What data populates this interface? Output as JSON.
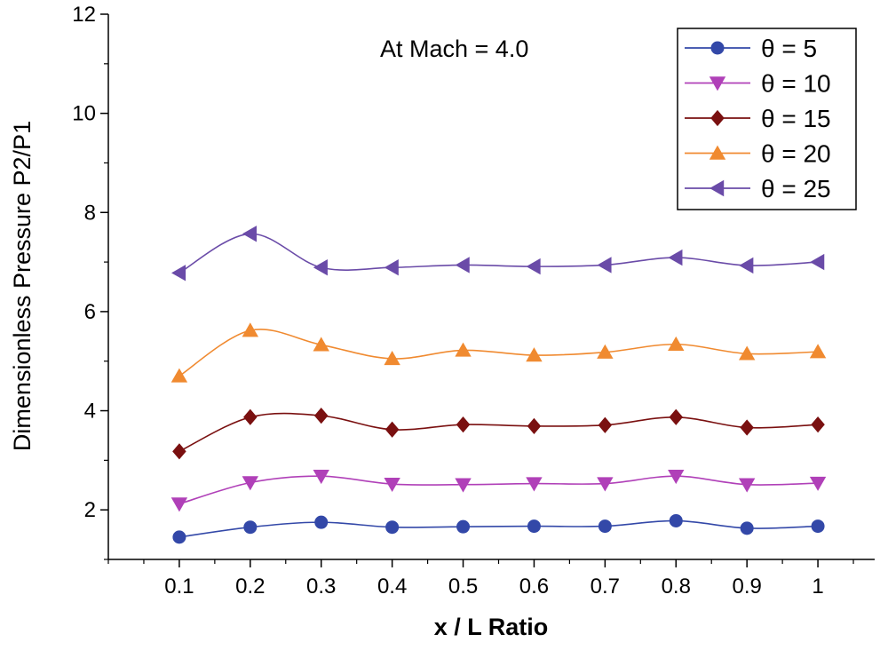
{
  "chart_data": {
    "type": "line",
    "title": "",
    "annotation": "At Mach = 4.0",
    "xlabel": "x / L Ratio",
    "ylabel": "Dimensionless Pressure P2/P1",
    "x": [
      0.1,
      0.2,
      0.3,
      0.4,
      0.5,
      0.6,
      0.7,
      0.8,
      0.9,
      1.0
    ],
    "x_tick_labels": [
      "0.1",
      "0.2",
      "0.3",
      "0.4",
      "0.5",
      "0.6",
      "0.7",
      "0.8",
      "0.9",
      "1"
    ],
    "y_tick_labels": [
      "2",
      "4",
      "6",
      "8",
      "10",
      "12"
    ],
    "xlim": [
      0.0,
      1.08
    ],
    "ylim": [
      1.0,
      12.0
    ],
    "grid": false,
    "legend_position": "top-right",
    "series": [
      {
        "name": "θ = 5",
        "marker": "circle",
        "color": "#3348A8",
        "values": [
          1.45,
          1.65,
          1.75,
          1.65,
          1.66,
          1.67,
          1.67,
          1.78,
          1.63,
          1.67
        ]
      },
      {
        "name": "θ = 10",
        "marker": "triangle-down",
        "color": "#B040B8",
        "values": [
          2.12,
          2.55,
          2.68,
          2.52,
          2.51,
          2.53,
          2.53,
          2.68,
          2.51,
          2.54
        ]
      },
      {
        "name": "θ = 15",
        "marker": "diamond",
        "color": "#7A1010",
        "values": [
          3.18,
          3.87,
          3.9,
          3.62,
          3.72,
          3.69,
          3.71,
          3.87,
          3.66,
          3.72
        ]
      },
      {
        "name": "θ = 20",
        "marker": "triangle-up",
        "color": "#F08A30",
        "values": [
          4.7,
          5.62,
          5.33,
          5.05,
          5.22,
          5.12,
          5.18,
          5.34,
          5.15,
          5.19
        ]
      },
      {
        "name": "θ = 25",
        "marker": "triangle-left",
        "color": "#6A4BA8",
        "values": [
          6.78,
          7.57,
          6.89,
          6.89,
          6.94,
          6.91,
          6.94,
          7.09,
          6.93,
          7.0
        ]
      }
    ]
  }
}
